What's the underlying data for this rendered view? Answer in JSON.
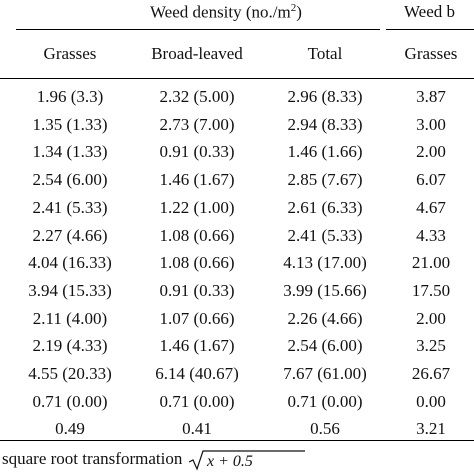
{
  "table": {
    "group_headers": {
      "density": "Weed density (no./m",
      "density_sup": "2",
      "density_close": ")",
      "biomass": "Weed b"
    },
    "columns": [
      "Grasses",
      "Broad-leaved",
      "Total",
      "Grasses"
    ],
    "rows": [
      [
        "1.96 (3.3)",
        "2.32 (5.00)",
        "2.96 (8.33)",
        "3.87"
      ],
      [
        "1.35 (1.33)",
        "2.73 (7.00)",
        "2.94 (8.33)",
        "3.00"
      ],
      [
        "1.34 (1.33)",
        "0.91 (0.33)",
        "1.46 (1.66)",
        "2.00"
      ],
      [
        "2.54 (6.00)",
        "1.46 (1.67)",
        "2.85 (7.67)",
        "6.07"
      ],
      [
        "2.41 (5.33)",
        "1.22 (1.00)",
        "2.61 (6.33)",
        "4.67"
      ],
      [
        "2.27 (4.66)",
        "1.08 (0.66)",
        "2.41 (5.33)",
        "4.33"
      ],
      [
        "4.04 (16.33)",
        "1.08 (0.66)",
        "4.13 (17.00)",
        "21.00"
      ],
      [
        "3.94 (15.33)",
        "0.91 (0.33)",
        "3.99 (15.66)",
        "17.50"
      ],
      [
        "2.11 (4.00)",
        "1.07 (0.66)",
        "2.26 (4.66)",
        "2.00"
      ],
      [
        "2.19 (4.33)",
        "1.46 (1.67)",
        "2.54 (6.00)",
        "3.25"
      ],
      [
        "4.55 (20.33)",
        "6.14 (40.67)",
        "7.67 (61.00)",
        "26.67"
      ],
      [
        "0.71 (0.00)",
        "0.71 (0.00)",
        "0.71 (0.00)",
        "0.00"
      ],
      [
        "0.49",
        "0.41",
        "0.56",
        "3.21"
      ]
    ],
    "footnote": "square root transformation",
    "footnote_formula": "x + 0.5"
  }
}
